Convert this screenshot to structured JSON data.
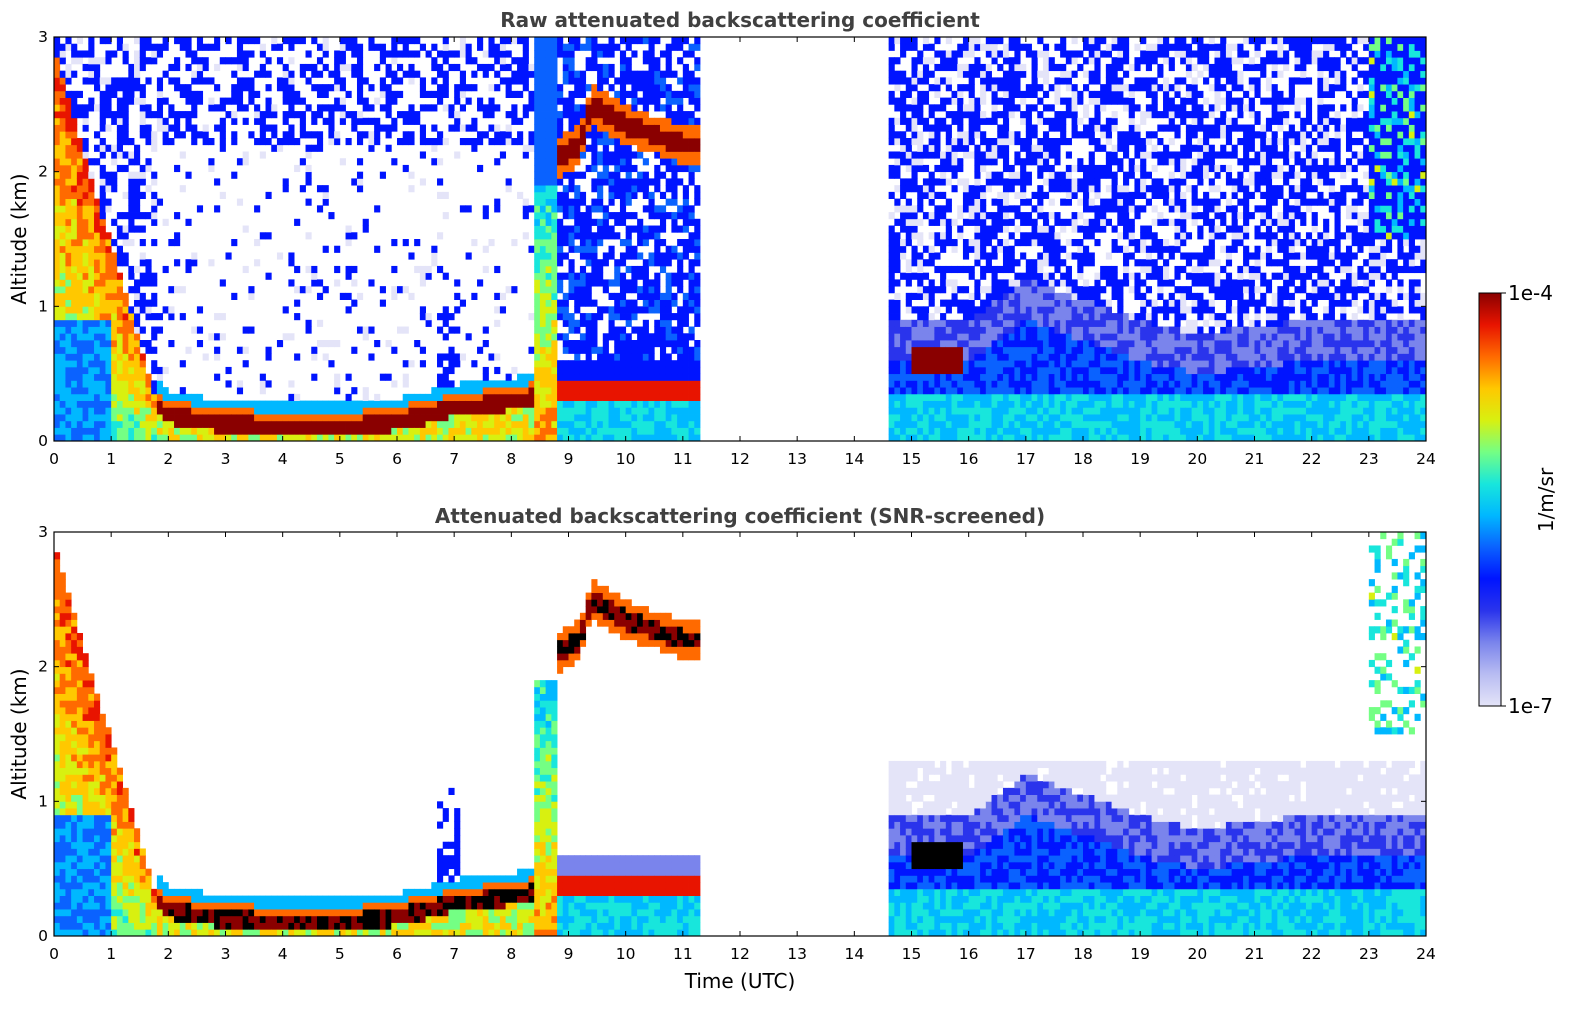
{
  "colors": {
    "colormap": [
      "#e4e4f8",
      "#b8bcf2",
      "#7a84ec",
      "#2a34ec",
      "#0014ff",
      "#0a62ff",
      "#00b8ff",
      "#18e6dc",
      "#74ff84",
      "#d8f010",
      "#ffc800",
      "#ff6a00",
      "#e81400",
      "#8a0000"
    ],
    "panel_title": "#404040",
    "layer_dark": "#000000"
  },
  "colorbar": {
    "label": "1/m/sr",
    "top_label": "1e-4",
    "bottom_label": "1e-7",
    "scale": "log",
    "range": [
      1e-07,
      0.0001
    ]
  },
  "chart_data": [
    {
      "type": "heatmap",
      "title": "Raw attenuated backscattering coefficient",
      "xlabel": "",
      "ylabel": "Altitude (km)",
      "xlim": [
        0,
        24
      ],
      "ylim": [
        0,
        3
      ],
      "x_ticks": [
        "0",
        "1",
        "2",
        "3",
        "4",
        "5",
        "6",
        "7",
        "8",
        "9",
        "10",
        "11",
        "12",
        "13",
        "14",
        "15",
        "16",
        "17",
        "18",
        "19",
        "20",
        "21",
        "22",
        "23",
        "24"
      ],
      "y_ticks": [
        "0",
        "1",
        "2",
        "3"
      ],
      "no_data_gap_hours": [
        11.3,
        14.6
      ],
      "cloud_layer_top_km": [
        [
          1.7,
          0.4
        ],
        [
          2,
          0.25
        ],
        [
          3,
          0.18
        ],
        [
          4,
          0.17
        ],
        [
          5,
          0.16
        ],
        [
          6,
          0.2
        ],
        [
          7,
          0.3
        ],
        [
          8,
          0.35
        ],
        [
          8.4,
          0.38
        ]
      ],
      "upper_cloud_km": [
        [
          8.8,
          2.1
        ],
        [
          9.2,
          2.2
        ],
        [
          9.4,
          2.5
        ],
        [
          10,
          2.35
        ],
        [
          11,
          2.2
        ]
      ],
      "boundary_layer_top_km": [
        [
          14.6,
          0.6
        ],
        [
          16,
          0.6
        ],
        [
          17,
          0.9
        ],
        [
          18,
          0.75
        ],
        [
          19,
          0.6
        ],
        [
          20,
          0.5
        ],
        [
          21,
          0.55
        ],
        [
          22,
          0.6
        ],
        [
          23,
          0.6
        ],
        [
          24,
          0.6
        ]
      ]
    },
    {
      "type": "heatmap",
      "title": "Attenuated backscattering coefficient (SNR-screened)",
      "xlabel": "Time (UTC)",
      "ylabel": "Altitude (km)",
      "xlim": [
        0,
        24
      ],
      "ylim": [
        0,
        3
      ],
      "x_ticks": [
        "0",
        "1",
        "2",
        "3",
        "4",
        "5",
        "6",
        "7",
        "8",
        "9",
        "10",
        "11",
        "12",
        "13",
        "14",
        "15",
        "16",
        "17",
        "18",
        "19",
        "20",
        "21",
        "22",
        "23",
        "24"
      ],
      "y_ticks": [
        "0",
        "1",
        "2",
        "3"
      ],
      "no_data_gap_hours": [
        11.3,
        14.6
      ],
      "cloud_layer_top_km": [
        [
          1.7,
          0.4
        ],
        [
          2,
          0.25
        ],
        [
          3,
          0.18
        ],
        [
          4,
          0.17
        ],
        [
          5,
          0.16
        ],
        [
          6,
          0.2
        ],
        [
          7,
          0.3
        ],
        [
          8,
          0.35
        ],
        [
          8.4,
          0.38
        ]
      ],
      "upper_cloud_km": [
        [
          8.8,
          2.1
        ],
        [
          9.2,
          2.2
        ],
        [
          9.4,
          2.5
        ],
        [
          10,
          2.35
        ],
        [
          11,
          2.2
        ]
      ],
      "boundary_layer_top_km": [
        [
          14.6,
          0.6
        ],
        [
          16,
          0.6
        ],
        [
          17,
          0.9
        ],
        [
          18,
          0.75
        ],
        [
          19,
          0.6
        ],
        [
          20,
          0.5
        ],
        [
          21,
          0.55
        ],
        [
          22,
          0.6
        ],
        [
          23,
          0.6
        ],
        [
          24,
          0.6
        ]
      ]
    }
  ]
}
